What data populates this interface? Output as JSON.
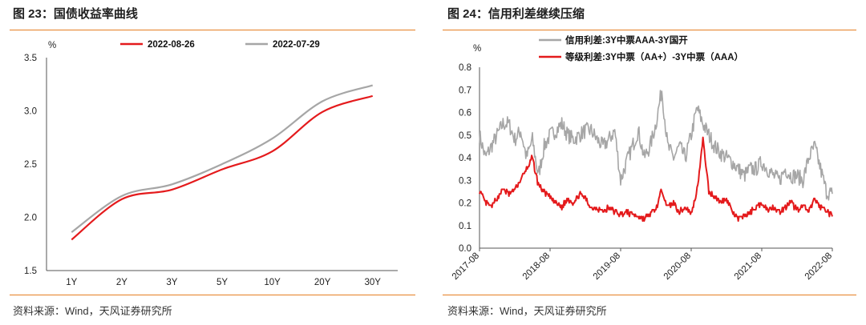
{
  "left": {
    "title": "图 23：国债收益率曲线",
    "source": "资料来源：Wind，天风证券研究所",
    "chart_data": {
      "type": "line",
      "ylabel": "%",
      "categories": [
        "1Y",
        "2Y",
        "3Y",
        "5Y",
        "10Y",
        "20Y",
        "30Y"
      ],
      "ylim": [
        1.5,
        3.5
      ],
      "yticks": [
        "1.5",
        "2.0",
        "2.5",
        "3.0",
        "3.5"
      ],
      "legend_position": "top",
      "series": [
        {
          "name": "2022-08-26",
          "color": "#e41a1c",
          "values": [
            1.79,
            2.17,
            2.26,
            2.45,
            2.62,
            2.99,
            3.14
          ]
        },
        {
          "name": "2022-07-29",
          "color": "#a6a6a6",
          "values": [
            1.86,
            2.2,
            2.31,
            2.5,
            2.74,
            3.09,
            3.24
          ]
        }
      ]
    }
  },
  "right": {
    "title": "图 24：信用利差继续压缩",
    "source": "资料来源：Wind，天风证券研究所",
    "chart_data": {
      "type": "line",
      "ylabel": "%",
      "xticks": [
        "2017-08",
        "2018-08",
        "2019-08",
        "2020-08",
        "2021-08",
        "2022-08"
      ],
      "x_range": [
        "2017-08",
        "2022-08"
      ],
      "ylim": [
        0.0,
        0.8
      ],
      "yticks": [
        "0.0",
        "0.1",
        "0.2",
        "0.3",
        "0.4",
        "0.5",
        "0.6",
        "0.7",
        "0.8"
      ],
      "legend_position": "top-left",
      "series": [
        {
          "name": "信用利差:3Y中票AAA-3Y国开",
          "color": "#a6a6a6",
          "x": [
            "2017-08",
            "2017-09",
            "2017-10",
            "2017-11",
            "2017-12",
            "2018-01",
            "2018-02",
            "2018-03",
            "2018-04",
            "2018-05",
            "2018-06",
            "2018-07",
            "2018-08",
            "2018-09",
            "2018-10",
            "2018-11",
            "2018-12",
            "2019-01",
            "2019-02",
            "2019-03",
            "2019-04",
            "2019-05",
            "2019-06",
            "2019-07",
            "2019-08",
            "2019-09",
            "2019-10",
            "2019-11",
            "2019-12",
            "2020-01",
            "2020-02",
            "2020-03",
            "2020-04",
            "2020-05",
            "2020-06",
            "2020-07",
            "2020-08",
            "2020-09",
            "2020-10",
            "2020-11",
            "2020-12",
            "2021-01",
            "2021-02",
            "2021-03",
            "2021-04",
            "2021-05",
            "2021-06",
            "2021-07",
            "2021-08",
            "2021-09",
            "2021-10",
            "2021-11",
            "2021-12",
            "2022-01",
            "2022-02",
            "2022-03",
            "2022-04",
            "2022-05",
            "2022-06",
            "2022-07",
            "2022-08"
          ],
          "values": [
            0.5,
            0.4,
            0.45,
            0.5,
            0.55,
            0.55,
            0.48,
            0.52,
            0.4,
            0.48,
            0.32,
            0.45,
            0.5,
            0.52,
            0.55,
            0.5,
            0.48,
            0.5,
            0.52,
            0.52,
            0.48,
            0.45,
            0.48,
            0.52,
            0.3,
            0.38,
            0.45,
            0.52,
            0.4,
            0.45,
            0.55,
            0.7,
            0.45,
            0.4,
            0.45,
            0.4,
            0.5,
            0.62,
            0.55,
            0.5,
            0.45,
            0.42,
            0.4,
            0.38,
            0.35,
            0.32,
            0.35,
            0.35,
            0.38,
            0.35,
            0.32,
            0.3,
            0.35,
            0.32,
            0.32,
            0.3,
            0.4,
            0.45,
            0.35,
            0.25,
            0.24
          ]
        },
        {
          "name": "等级利差:3Y中票（AA+）-3Y中票（AAA）",
          "color": "#e41a1c",
          "x": [
            "2017-08",
            "2017-09",
            "2017-10",
            "2017-11",
            "2017-12",
            "2018-01",
            "2018-02",
            "2018-03",
            "2018-04",
            "2018-05",
            "2018-06",
            "2018-07",
            "2018-08",
            "2018-09",
            "2018-10",
            "2018-11",
            "2018-12",
            "2019-01",
            "2019-02",
            "2019-03",
            "2019-04",
            "2019-05",
            "2019-06",
            "2019-07",
            "2019-08",
            "2019-09",
            "2019-10",
            "2019-11",
            "2019-12",
            "2020-01",
            "2020-02",
            "2020-03",
            "2020-04",
            "2020-05",
            "2020-06",
            "2020-07",
            "2020-08",
            "2020-09",
            "2020-10",
            "2020-11",
            "2020-12",
            "2021-01",
            "2021-02",
            "2021-03",
            "2021-04",
            "2021-05",
            "2021-06",
            "2021-07",
            "2021-08",
            "2021-09",
            "2021-10",
            "2021-11",
            "2021-12",
            "2022-01",
            "2022-02",
            "2022-03",
            "2022-04",
            "2022-05",
            "2022-06",
            "2022-07",
            "2022-08"
          ],
          "values": [
            0.25,
            0.2,
            0.18,
            0.22,
            0.26,
            0.24,
            0.26,
            0.3,
            0.35,
            0.4,
            0.28,
            0.25,
            0.22,
            0.2,
            0.18,
            0.22,
            0.2,
            0.24,
            0.22,
            0.18,
            0.18,
            0.16,
            0.18,
            0.16,
            0.15,
            0.16,
            0.15,
            0.14,
            0.13,
            0.15,
            0.17,
            0.26,
            0.18,
            0.2,
            0.16,
            0.18,
            0.15,
            0.26,
            0.48,
            0.25,
            0.23,
            0.2,
            0.22,
            0.16,
            0.13,
            0.14,
            0.16,
            0.18,
            0.2,
            0.17,
            0.18,
            0.16,
            0.18,
            0.2,
            0.17,
            0.19,
            0.16,
            0.22,
            0.18,
            0.17,
            0.14
          ]
        }
      ]
    }
  }
}
